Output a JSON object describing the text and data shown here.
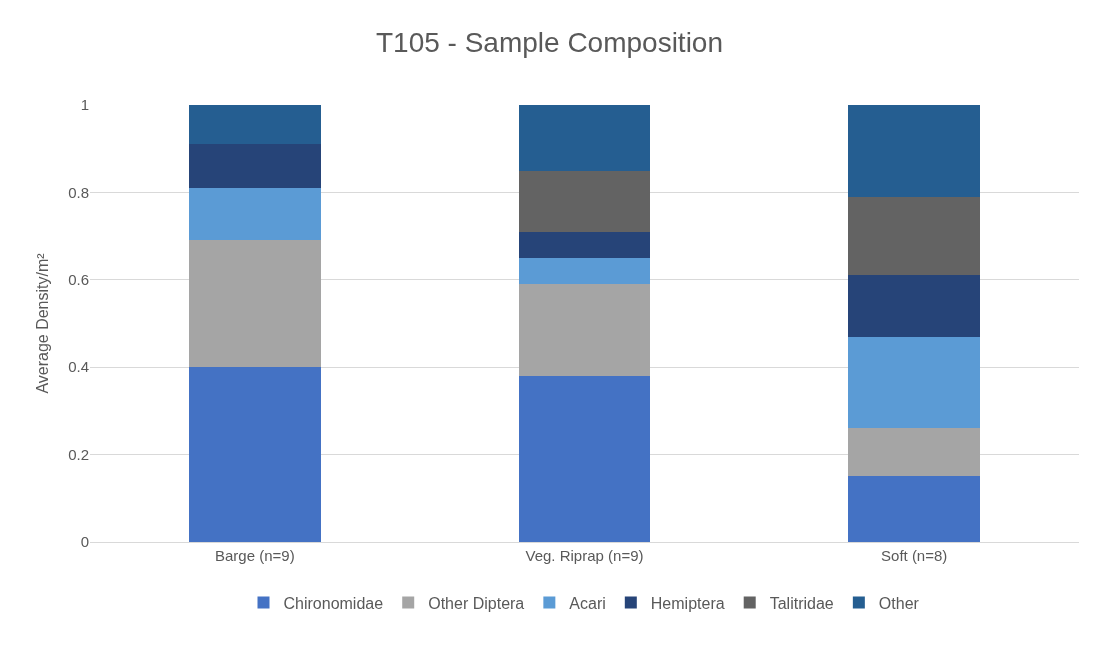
{
  "chart_data": {
    "type": "bar",
    "title": "T105 - Sample Composition",
    "ylabel": "Average Density/m²",
    "categories": [
      "Barge (n=9)",
      "Veg. Riprap (n=9)",
      "Soft (n=8)"
    ],
    "stacked": true,
    "series": [
      {
        "name": "Chironomidae",
        "color": "#4472c4",
        "values": [
          0.4,
          0.38,
          0.15
        ]
      },
      {
        "name": "Other Diptera",
        "color": "#a5a5a5",
        "values": [
          0.29,
          0.21,
          0.11
        ]
      },
      {
        "name": "Acari",
        "color": "#5b9bd5",
        "values": [
          0.12,
          0.06,
          0.21
        ]
      },
      {
        "name": "Hemiptera",
        "color": "#264478",
        "values": [
          0.1,
          0.06,
          0.14
        ]
      },
      {
        "name": "Talitridae",
        "color": "#636363",
        "values": [
          0,
          0.14,
          0.18
        ]
      },
      {
        "name": "Other",
        "color": "#255e91",
        "values": [
          0.09,
          0.15,
          0.21
        ]
      }
    ],
    "ylim": [
      0,
      1
    ],
    "yticks": [
      0,
      0.2,
      0.4,
      0.6,
      0.8,
      1
    ],
    "grid": "y",
    "legend": "bottom"
  }
}
